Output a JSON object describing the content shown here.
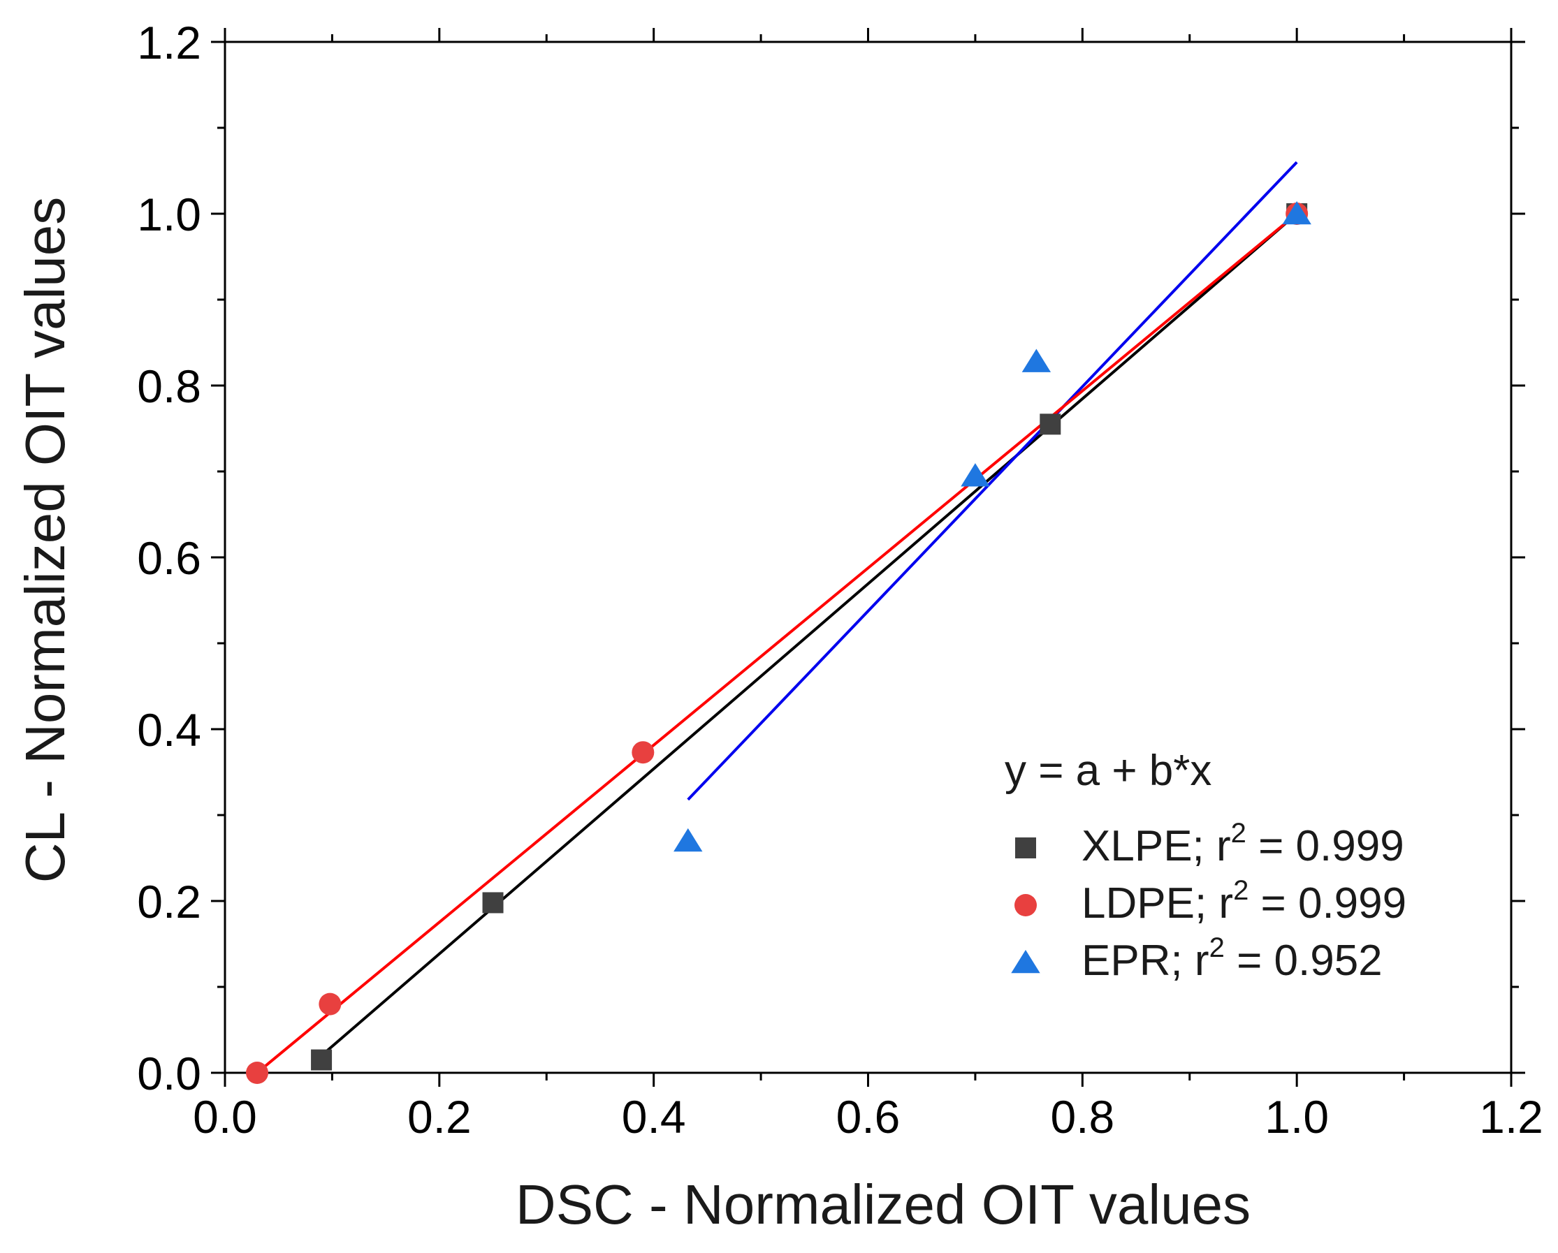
{
  "chart_data": {
    "type": "scatter",
    "xlabel": "DSC - Normalized OIT values",
    "ylabel": "CL - Normalized OIT values",
    "xlim": [
      0.0,
      1.2
    ],
    "ylim": [
      0.0,
      1.2
    ],
    "x_ticks": [
      "0.0",
      "0.2",
      "0.4",
      "0.6",
      "0.8",
      "1.0",
      "1.2"
    ],
    "y_ticks": [
      "0.0",
      "0.2",
      "0.4",
      "0.6",
      "0.8",
      "1.0",
      "1.2"
    ],
    "grid": false,
    "legend_position": "lower-right",
    "legend_title": "y = a + b*x",
    "series": [
      {
        "name": "XLPE",
        "r2_prefix": "XLPE; r",
        "r2_value": "= 0.999",
        "marker": "square",
        "marker_color": "#404040",
        "line_color": "#000000",
        "points": [
          [
            0.09,
            0.015
          ],
          [
            0.25,
            0.198
          ],
          [
            0.77,
            0.755
          ],
          [
            1.0,
            1.0
          ]
        ],
        "fit": [
          [
            0.09,
            0.02
          ],
          [
            1.0,
            1.0
          ]
        ]
      },
      {
        "name": "LDPE",
        "r2_prefix": "LDPE; r",
        "r2_value": "= 0.999",
        "marker": "circle",
        "marker_color": "#e8403f",
        "line_color": "#ff0000",
        "points": [
          [
            0.03,
            0.0
          ],
          [
            0.098,
            0.08
          ],
          [
            0.39,
            0.373
          ],
          [
            1.0,
            1.0
          ]
        ],
        "fit": [
          [
            0.03,
            0.0
          ],
          [
            1.0,
            1.0
          ]
        ]
      },
      {
        "name": "EPR",
        "r2_prefix": "EPR; r",
        "r2_value": "= 0.952",
        "marker": "triangle",
        "marker_color": "#1f77e0",
        "line_color": "#0000ee",
        "points": [
          [
            0.432,
            0.27
          ],
          [
            0.7,
            0.695
          ],
          [
            0.757,
            0.828
          ],
          [
            1.0,
            1.0
          ]
        ],
        "fit": [
          [
            0.432,
            0.318
          ],
          [
            1.0,
            1.06
          ]
        ]
      }
    ]
  }
}
